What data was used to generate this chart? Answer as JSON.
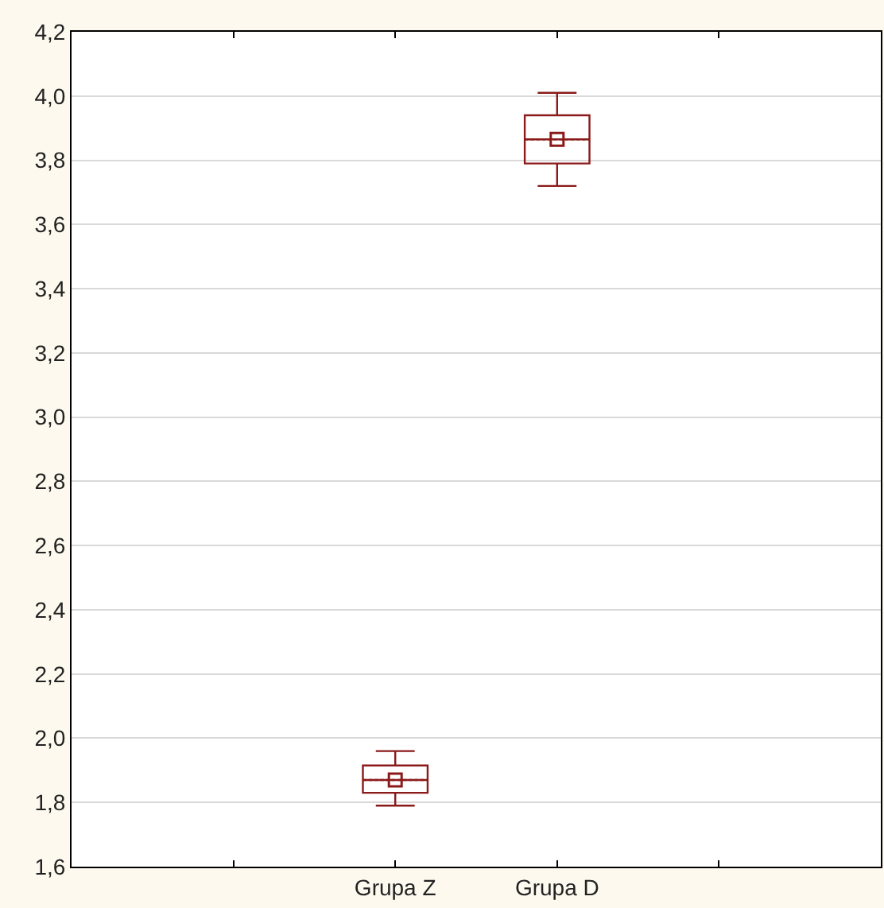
{
  "chart_data": {
    "type": "box",
    "categories": [
      "Grupa Z",
      "Grupa D"
    ],
    "color": "#8b1a1a",
    "boxes": [
      {
        "low": 1.79,
        "q1": 1.83,
        "median": 1.87,
        "q3": 1.915,
        "high": 1.96,
        "mean": 1.87
      },
      {
        "low": 3.72,
        "q1": 3.79,
        "median": 3.865,
        "q3": 3.94,
        "high": 4.01,
        "mean": 3.865
      }
    ],
    "ylim": [
      1.6,
      4.2
    ],
    "yticks": [
      {
        "value": 1.6,
        "label": "1,6"
      },
      {
        "value": 1.8,
        "label": "1,8"
      },
      {
        "value": 2.0,
        "label": "2,0"
      },
      {
        "value": 2.2,
        "label": "2,2"
      },
      {
        "value": 2.4,
        "label": "2,4"
      },
      {
        "value": 2.6,
        "label": "2,6"
      },
      {
        "value": 2.8,
        "label": "2,8"
      },
      {
        "value": 3.0,
        "label": "3,0"
      },
      {
        "value": 3.2,
        "label": "3,2"
      },
      {
        "value": 3.4,
        "label": "3,4"
      },
      {
        "value": 3.6,
        "label": "3,6"
      },
      {
        "value": 3.8,
        "label": "3,8"
      },
      {
        "value": 4.0,
        "label": "4,0"
      },
      {
        "value": 4.2,
        "label": "4,2"
      }
    ],
    "grid": "y",
    "legend": false,
    "marker": "square"
  }
}
